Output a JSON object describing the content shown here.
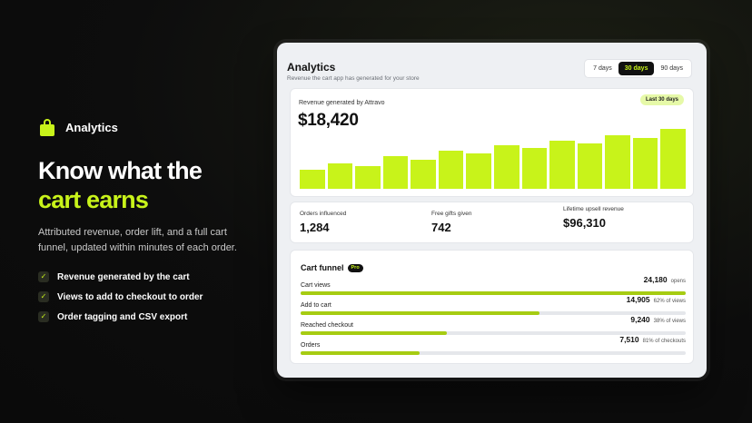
{
  "hero": {
    "brand": "Analytics",
    "headline_line1": "Know what the",
    "headline_line2": "cart earns",
    "subtitle": "Attributed revenue, order lift, and a full cart funnel, updated within minutes of each order.",
    "features": [
      "Revenue generated by the cart",
      "Views to add to checkout to order",
      "Order tagging and CSV export"
    ]
  },
  "app": {
    "title": "Analytics",
    "subtitle": "Revenue the cart app has generated for your store",
    "ranges": [
      "7 days",
      "30 days",
      "90 days"
    ],
    "selected_range": "30 days",
    "revenue": {
      "label": "Revenue generated by Attravo",
      "value": "$18,420",
      "badge": "Last 30 days",
      "bars": [
        0.3,
        0.4,
        0.36,
        0.52,
        0.46,
        0.6,
        0.56,
        0.68,
        0.64,
        0.76,
        0.72,
        0.85,
        0.8,
        0.95
      ]
    },
    "stats": [
      {
        "label": "Orders influenced",
        "value": "1,284"
      },
      {
        "label": "Free gifts given",
        "value": "742"
      },
      {
        "label": "Lifetime upsell revenue",
        "value": "$96,310"
      }
    ],
    "funnel": {
      "title": "Cart funnel",
      "badge": "Pro",
      "rows": [
        {
          "label": "Cart views",
          "count": "24,180",
          "note": "opens",
          "fraction": 1.0
        },
        {
          "label": "Add to cart",
          "count": "14,905",
          "note": "62% of views",
          "fraction": 0.62
        },
        {
          "label": "Reached checkout",
          "count": "9,240",
          "note": "38% of views",
          "fraction": 0.38
        },
        {
          "label": "Orders",
          "count": "7,510",
          "note": "81% of checkouts",
          "fraction": 0.31
        }
      ]
    }
  },
  "colors": {
    "accent": "#c8f31a",
    "funnel_fill": "#a6cc12"
  }
}
